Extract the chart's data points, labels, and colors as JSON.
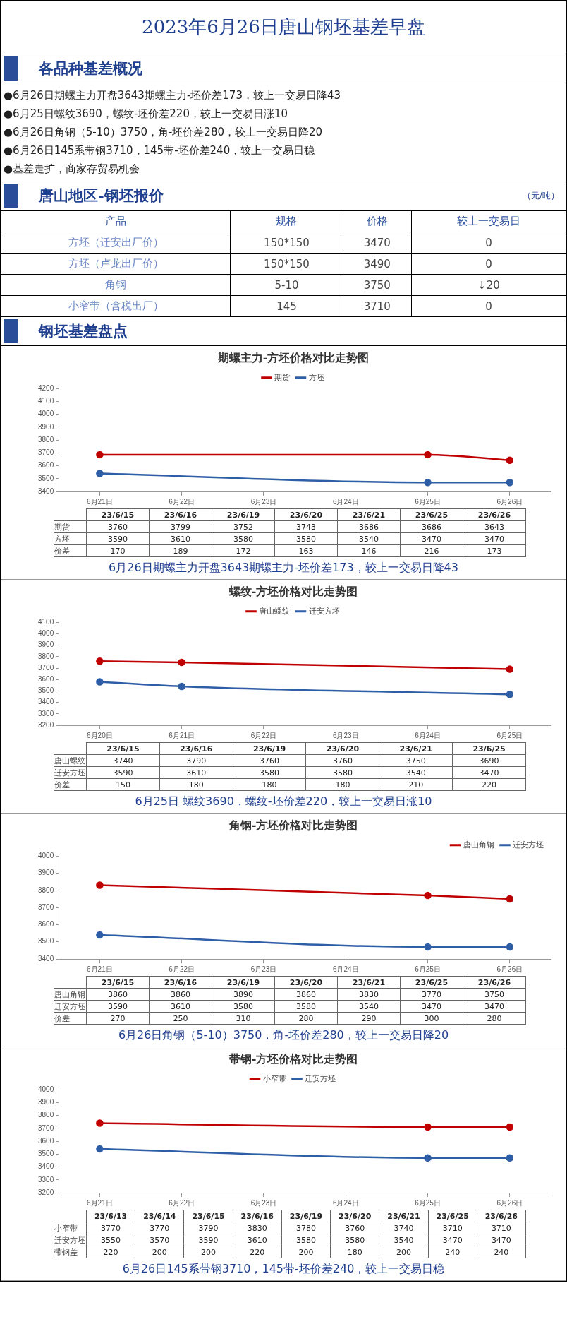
{
  "chart_data": [
    {
      "type": "other",
      "title": "2023年6月26日唐山钢坯基差早盘",
      "subtitle": "各品种基差概况",
      "annotations": [
        "●6月26日期螺主力开盘3643期螺主力-坯价差173，较上一交易日降43",
        "●6月25日螺纹3690，螺纹-坯价差220，较上一交易日涨10",
        "●6月26日角钢（5-10）3750，角-坯价差280，较上一交易日降20",
        "●6月26日145系带钢3710，145带-坯价差240，较上一交易日稳",
        "●基差走扩，商家存贸易机会"
      ]
    },
    {
      "type": "heatmap",
      "data_labels": true,
      "title": "唐山地区-钢坯报价",
      "subtitle": "（元/吨）",
      "ylabel": "产品",
      "categories": [
        "规格",
        "价格",
        "较上一交易日"
      ],
      "y_categories": [
        "方坯（迁安出厂价）",
        "方坯（卢龙出厂价）",
        "角钢",
        "小窄带（含税出厂）"
      ],
      "cells": [
        [
          null,
          3470,
          null
        ],
        [
          null,
          3490,
          null
        ],
        [
          null,
          3750,
          null
        ],
        [
          null,
          3710,
          null
        ]
      ],
      "cell_labels": [
        [
          "150*150",
          "3470",
          "0"
        ],
        [
          "150*150",
          "3490",
          "0"
        ],
        [
          "5-10",
          "3750",
          "↓20"
        ],
        [
          "145",
          "3710",
          "0"
        ]
      ]
    },
    {
      "type": "other",
      "subtitle": "钢坯基差盘点"
    },
    {
      "type": "line",
      "title": "期螺主力-方坯价格对比走势图",
      "x": [
        "2023-06-21",
        "2023-06-25",
        "2023-06-26"
      ],
      "series": [
        {
          "name": "期货",
          "color": "#c00000",
          "values": [
            3686,
            3686,
            3643
          ]
        },
        {
          "name": "方坯",
          "color": "#2e5ea6",
          "values": [
            3540,
            3470,
            3470
          ]
        }
      ],
      "xlim": [
        "2023-06-20T12:00",
        "2023-06-26T12:00"
      ],
      "xticks": [
        {
          "value": "2023-06-21",
          "label": "6月21日"
        },
        {
          "value": "2023-06-22",
          "label": "6月22日"
        },
        {
          "value": "2023-06-23",
          "label": "6月23日"
        },
        {
          "value": "2023-06-24",
          "label": "6月24日"
        },
        {
          "value": "2023-06-25",
          "label": "6月25日"
        },
        {
          "value": "2023-06-26",
          "label": "6月26日"
        }
      ],
      "ylim": [
        3400,
        4200
      ],
      "yticks": [
        3400,
        3500,
        3600,
        3700,
        3800,
        3900,
        4000,
        4100,
        4200
      ],
      "legend": "top",
      "marker": "circle",
      "grid": false
    },
    {
      "type": "heatmap",
      "data_labels": true,
      "categories": [
        "23/6/15",
        "23/6/16",
        "23/6/19",
        "23/6/20",
        "23/6/21",
        "23/6/25",
        "23/6/26"
      ],
      "y_categories": [
        "期货",
        "方坯",
        "价差"
      ],
      "cells": [
        [
          3760,
          3799,
          3752,
          3743,
          3686,
          3686,
          3643
        ],
        [
          3590,
          3610,
          3580,
          3580,
          3540,
          3470,
          3470
        ],
        [
          170,
          189,
          172,
          163,
          146,
          216,
          173
        ]
      ],
      "annotations": [
        "6月26日期螺主力开盘3643期螺主力-坯价差173，较上一交易日降43"
      ]
    },
    {
      "type": "line",
      "title": "螺纹-方坯价格对比走势图",
      "x": [
        "2023-06-20",
        "2023-06-21",
        "2023-06-25"
      ],
      "series": [
        {
          "name": "唐山螺纹",
          "color": "#c00000",
          "values": [
            3760,
            3750,
            3690
          ]
        },
        {
          "name": "迁安方坯",
          "color": "#2e5ea6",
          "values": [
            3580,
            3540,
            3470
          ]
        }
      ],
      "xlim": [
        "2023-06-19T12:00",
        "2023-06-25T12:00"
      ],
      "xticks": [
        {
          "value": "2023-06-20",
          "label": "6月20日"
        },
        {
          "value": "2023-06-21",
          "label": "6月21日"
        },
        {
          "value": "2023-06-22",
          "label": "6月22日"
        },
        {
          "value": "2023-06-23",
          "label": "6月23日"
        },
        {
          "value": "2023-06-24",
          "label": "6月24日"
        },
        {
          "value": "2023-06-25",
          "label": "6月25日"
        }
      ],
      "ylim": [
        3200,
        4100
      ],
      "yticks": [
        3200,
        3300,
        3400,
        3500,
        3600,
        3700,
        3800,
        3900,
        4000,
        4100
      ],
      "legend": "top",
      "marker": "circle",
      "grid": false
    },
    {
      "type": "heatmap",
      "data_labels": true,
      "categories": [
        "23/6/15",
        "23/6/16",
        "23/6/19",
        "23/6/20",
        "23/6/21",
        "23/6/25"
      ],
      "y_categories": [
        "唐山螺纹",
        "迁安方坯",
        "价差"
      ],
      "cells": [
        [
          3740,
          3790,
          3760,
          3760,
          3750,
          3690
        ],
        [
          3590,
          3610,
          3580,
          3580,
          3540,
          3470
        ],
        [
          150,
          180,
          180,
          180,
          210,
          220
        ]
      ],
      "annotations": [
        "6月25日 螺纹3690，螺纹-坯价差220，较上一交易日涨10"
      ]
    },
    {
      "type": "line",
      "title": "角钢-方坯价格对比走势图",
      "x": [
        "2023-06-21",
        "2023-06-25",
        "2023-06-26"
      ],
      "series": [
        {
          "name": "唐山角钢",
          "color": "#c00000",
          "values": [
            3830,
            3770,
            3750
          ]
        },
        {
          "name": "迁安方坯",
          "color": "#2e5ea6",
          "values": [
            3540,
            3470,
            3470
          ]
        }
      ],
      "xlim": [
        "2023-06-20T12:00",
        "2023-06-26T12:00"
      ],
      "xticks": [
        {
          "value": "2023-06-21",
          "label": "6月21日"
        },
        {
          "value": "2023-06-22",
          "label": "6月22日"
        },
        {
          "value": "2023-06-23",
          "label": "6月23日"
        },
        {
          "value": "2023-06-24",
          "label": "6月24日"
        },
        {
          "value": "2023-06-25",
          "label": "6月25日"
        },
        {
          "value": "2023-06-26",
          "label": "6月26日"
        }
      ],
      "ylim": [
        3400,
        4000
      ],
      "yticks": [
        3400,
        3500,
        3600,
        3700,
        3800,
        3900,
        4000
      ],
      "legend": "top right",
      "marker": "circle",
      "grid": false
    },
    {
      "type": "heatmap",
      "data_labels": true,
      "categories": [
        "23/6/15",
        "23/6/16",
        "23/6/19",
        "23/6/20",
        "23/6/21",
        "23/6/25",
        "23/6/26"
      ],
      "y_categories": [
        "唐山角钢",
        "迁安方坯",
        "价差"
      ],
      "cells": [
        [
          3860,
          3860,
          3890,
          3860,
          3830,
          3770,
          3750
        ],
        [
          3590,
          3610,
          3580,
          3580,
          3540,
          3470,
          3470
        ],
        [
          270,
          250,
          310,
          280,
          290,
          300,
          280
        ]
      ],
      "annotations": [
        "6月26日角钢（5-10）3750，角-坯价差280，较上一交易日降20"
      ]
    },
    {
      "type": "line",
      "title": "带钢-方坯价格对比走势图",
      "x": [
        "2023-06-21",
        "2023-06-25",
        "2023-06-26"
      ],
      "series": [
        {
          "name": "小窄带",
          "color": "#c00000",
          "values": [
            3740,
            3710,
            3710
          ]
        },
        {
          "name": "迁安方坯",
          "color": "#2e5ea6",
          "values": [
            3540,
            3470,
            3470
          ]
        }
      ],
      "xlim": [
        "2023-06-20T12:00",
        "2023-06-26T12:00"
      ],
      "xticks": [
        {
          "value": "2023-06-21",
          "label": "6月21日"
        },
        {
          "value": "2023-06-22",
          "label": "6月22日"
        },
        {
          "value": "2023-06-23",
          "label": "6月23日"
        },
        {
          "value": "2023-06-24",
          "label": "6月24日"
        },
        {
          "value": "2023-06-25",
          "label": "6月25日"
        },
        {
          "value": "2023-06-26",
          "label": "6月26日"
        }
      ],
      "ylim": [
        3200,
        4000
      ],
      "yticks": [
        3200,
        3300,
        3400,
        3500,
        3600,
        3700,
        3800,
        3900,
        4000
      ],
      "legend": "top",
      "marker": "circle",
      "grid": false
    },
    {
      "type": "heatmap",
      "data_labels": true,
      "categories": [
        "23/6/13",
        "23/6/14",
        "23/6/15",
        "23/6/16",
        "23/6/19",
        "23/6/20",
        "23/6/21",
        "23/6/25",
        "23/6/26"
      ],
      "y_categories": [
        "小窄带",
        "迁安方坯",
        "带钢差"
      ],
      "cells": [
        [
          3770,
          3770,
          3790,
          3830,
          3780,
          3760,
          3740,
          3710,
          3710
        ],
        [
          3550,
          3570,
          3590,
          3610,
          3580,
          3580,
          3540,
          3470,
          3470
        ],
        [
          220,
          200,
          200,
          220,
          200,
          180,
          200,
          240,
          240
        ]
      ],
      "annotations": [
        "6月26日145系带钢3710，145带-坯价差240，较上一交易日稳"
      ]
    }
  ]
}
